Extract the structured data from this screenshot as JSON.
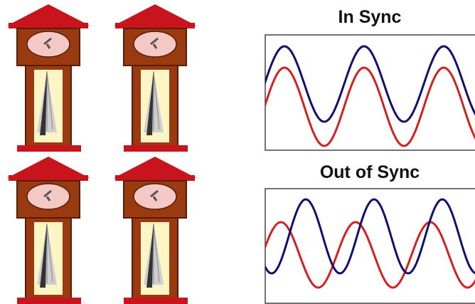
{
  "panels": [
    {
      "title": "In Sync"
    },
    {
      "title": "Out of Sync"
    }
  ]
}
